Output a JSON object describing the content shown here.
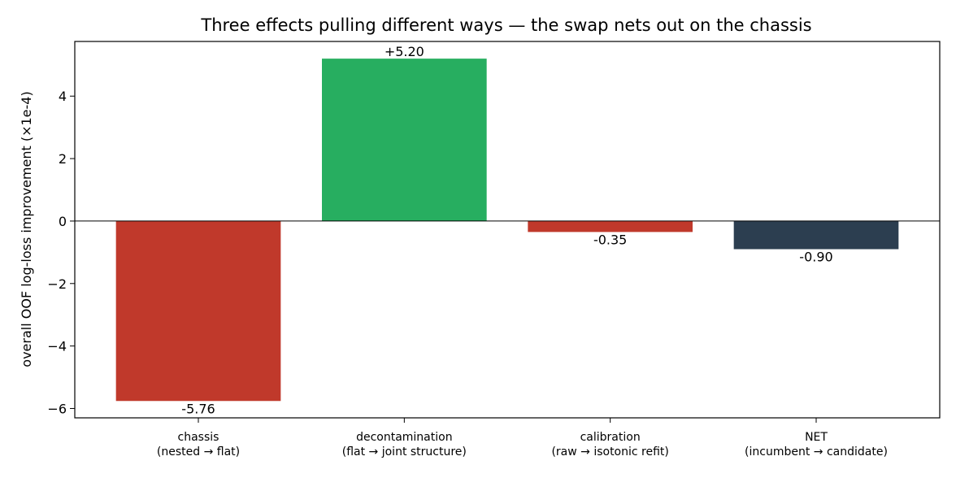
{
  "chart_data": {
    "type": "bar",
    "title": "Three effects pulling different ways — the swap nets out on the chassis",
    "xlabel": "",
    "ylabel": "overall OOF log-loss improvement (×1e-4)",
    "ylim": [
      -6.3,
      5.75
    ],
    "yticks": [
      {
        "value": -6,
        "label": "−6"
      },
      {
        "value": -4,
        "label": "−4"
      },
      {
        "value": -2,
        "label": "−2"
      },
      {
        "value": 0,
        "label": "0"
      },
      {
        "value": 2,
        "label": "2"
      },
      {
        "value": 4,
        "label": "4"
      }
    ],
    "categories": [
      {
        "line1": "chassis",
        "line2": "(nested → flat)"
      },
      {
        "line1": "decontamination",
        "line2": "(flat → joint structure)"
      },
      {
        "line1": "calibration",
        "line2": "(raw → isotonic refit)"
      },
      {
        "line1": "NET",
        "line2": "(incumbent → candidate)"
      }
    ],
    "values": [
      -5.76,
      5.2,
      -0.35,
      -0.9
    ],
    "value_labels": [
      "-5.76",
      "+5.20",
      "-0.35",
      "-0.90"
    ],
    "colors": [
      "#c0392b",
      "#27ae60",
      "#c0392b",
      "#2c3e50"
    ],
    "grid": false,
    "legend": "none",
    "zero_line": true
  }
}
